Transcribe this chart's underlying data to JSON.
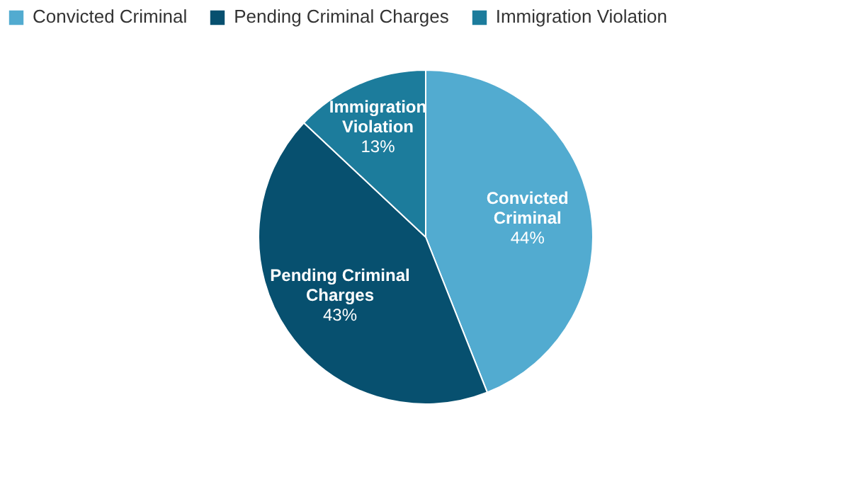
{
  "chart_data": {
    "type": "pie",
    "categories": [
      "Convicted Criminal",
      "Pending Criminal Charges",
      "Immigration Violation"
    ],
    "values": [
      44,
      43,
      13
    ],
    "colors": [
      "#52abd0",
      "#07506f",
      "#1c7c9c"
    ],
    "value_labels": [
      "44%",
      "43%",
      "13%"
    ],
    "legend": "top left"
  }
}
